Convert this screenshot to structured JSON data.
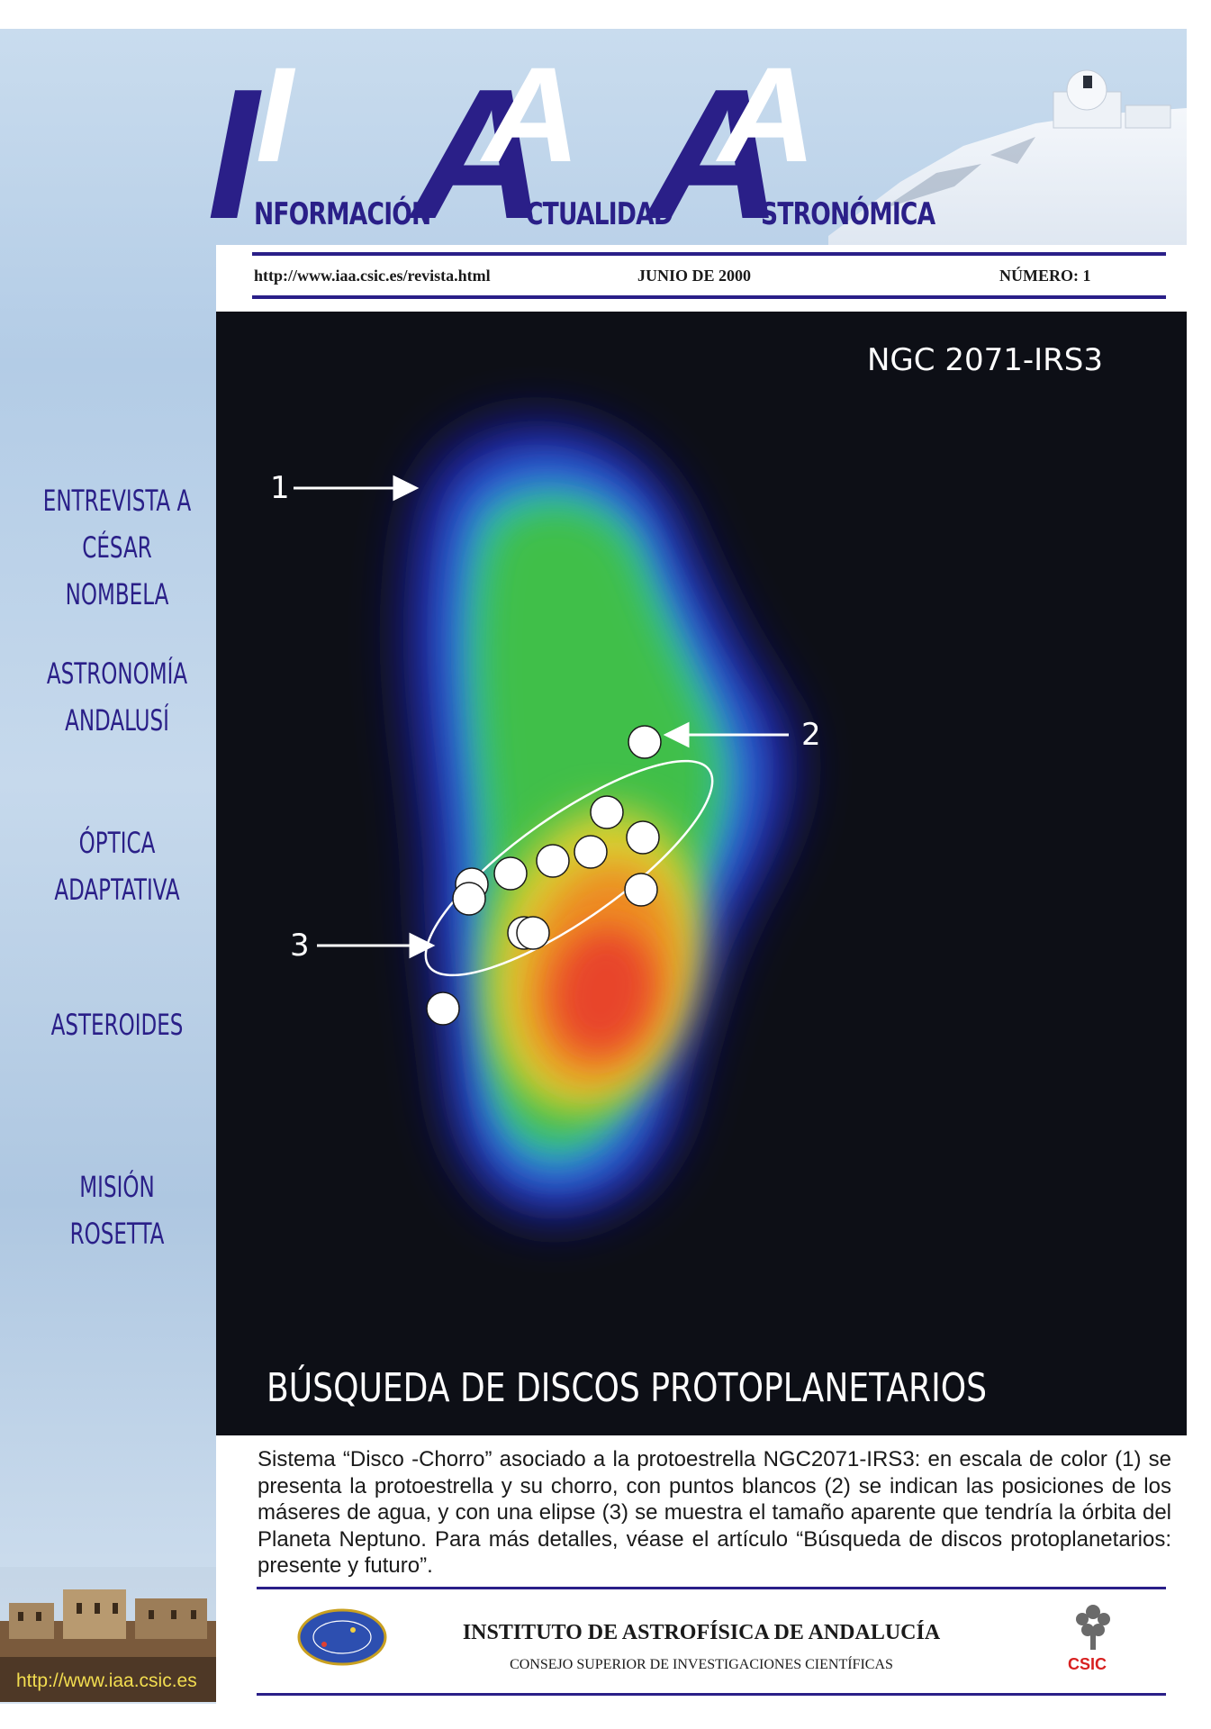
{
  "masthead": {
    "letter_1": "I",
    "word_1": "NFORMACIÓN",
    "letter_2": "A",
    "word_2": "CTUALIDAD",
    "letter_3": "A",
    "word_3": "STRONÓMICA"
  },
  "infobar": {
    "url": "http://www.iaa.csic.es/revista.html",
    "date": "JUNIO DE 2000",
    "issue": "NÚMERO: 1"
  },
  "sidebar": {
    "items": [
      {
        "line1": "ENTREVISTA A",
        "line2": "CÉSAR NOMBELA"
      },
      {
        "line1": "ASTRONOMÍA",
        "line2": "ANDALUSÍ"
      },
      {
        "line1": "ÓPTICA",
        "line2": "ADAPTATIVA"
      },
      {
        "line1": "ASTEROIDES",
        "line2": ""
      },
      {
        "line1": "MISIÓN",
        "line2": "ROSETTA"
      }
    ],
    "url": "http://www.iaa.csic.es"
  },
  "figure": {
    "label": "NGC 2071-IRS3",
    "arrow_1": "1",
    "arrow_2": "2",
    "arrow_3": "3",
    "banner": "BÚSQUEDA DE DISCOS PROTOPLANETARIOS"
  },
  "caption": "Sistema “Disco -Chorro” asociado a la protoestrella NGC2071-IRS3: en escala de color (1) se presenta la protoestrella y su chorro, con puntos blancos (2) se indican las posiciones de los máseres de agua, y con una elipse (3) se muestra el tamaño aparente que tendría  la órbita del Planeta Neptuno. Para más detalles, véase el artículo “Búsqueda de discos  protoplanetarios: presente y futuro”.",
  "footer": {
    "institute": "INSTITUTO DE ASTROFÍSICA DE ANDALUCÍA",
    "council": "CONSEJO SUPERIOR DE INVESTIGACIONES CIENTÍFICAS",
    "csic": "CSIC"
  },
  "colors": {
    "brand": "#2a1f88",
    "figure_bg": "#0d0f16",
    "url_yellow": "#f2dd50",
    "csic_red": "#d82020"
  }
}
